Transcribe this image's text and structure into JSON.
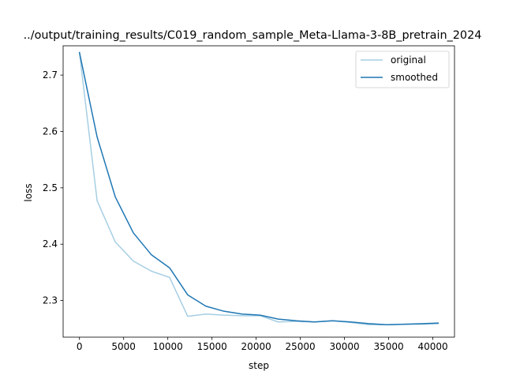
{
  "chart_data": {
    "type": "line",
    "title": "../output/training_results/C019_random_sample_Meta-Llama-3-8B_pretrain_2024",
    "xlabel": "step",
    "ylabel": "loss",
    "xlim": [
      -1850,
      42450
    ],
    "ylim": [
      2.235,
      2.752
    ],
    "xticks": [
      0,
      5000,
      10000,
      15000,
      20000,
      25000,
      30000,
      35000,
      40000
    ],
    "xtick_labels": [
      "0",
      "5000",
      "10000",
      "15000",
      "20000",
      "25000",
      "30000",
      "35000",
      "40000"
    ],
    "yticks": [
      2.3,
      2.4,
      2.5,
      2.6,
      2.7
    ],
    "ytick_labels": [
      "2.3",
      "2.4",
      "2.5",
      "2.6",
      "2.7"
    ],
    "grid": false,
    "legend_position": "top-right",
    "series": [
      {
        "name": "original",
        "color": "#a6cee3",
        "x": [
          0,
          2000,
          4050,
          6100,
          8150,
          10200,
          12250,
          14300,
          16350,
          18400,
          20450,
          22500,
          24550,
          26600,
          28650,
          30700,
          32750,
          34800,
          36850,
          38900,
          40600
        ],
        "y": [
          2.74,
          2.477,
          2.404,
          2.37,
          2.352,
          2.341,
          2.272,
          2.276,
          2.274,
          2.273,
          2.273,
          2.262,
          2.263,
          2.262,
          2.264,
          2.261,
          2.257,
          2.257,
          2.258,
          2.258,
          2.259
        ]
      },
      {
        "name": "smoothed",
        "color": "#1f77b4",
        "x": [
          0,
          2000,
          4050,
          6100,
          8150,
          10200,
          12250,
          14300,
          16350,
          18400,
          20450,
          22500,
          24550,
          26600,
          28650,
          30700,
          32750,
          34800,
          36850,
          38900,
          40600
        ],
        "y": [
          2.74,
          2.59,
          2.484,
          2.42,
          2.381,
          2.358,
          2.31,
          2.29,
          2.281,
          2.276,
          2.274,
          2.267,
          2.264,
          2.262,
          2.264,
          2.262,
          2.259,
          2.257,
          2.258,
          2.259,
          2.26
        ]
      }
    ]
  }
}
